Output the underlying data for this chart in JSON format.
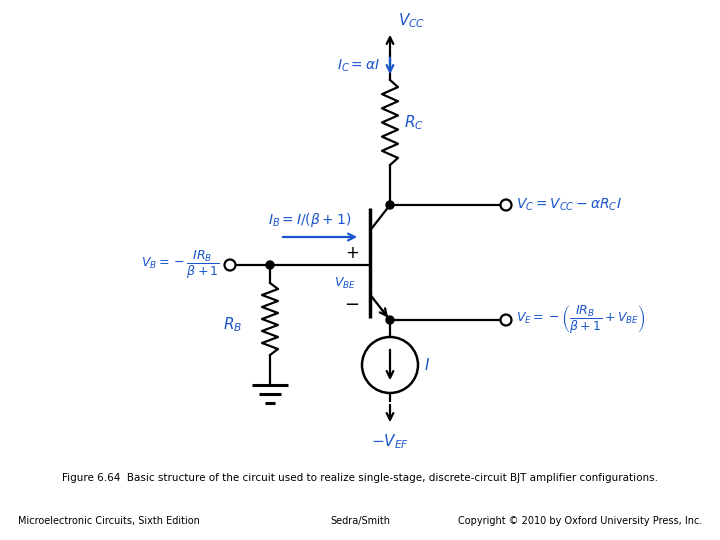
{
  "caption": "Figure 6.64  Basic structure of the circuit used to realize single-stage, discrete-circuit BJT amplifier configurations.",
  "footer_left": "Microelectronic Circuits, Sixth Edition",
  "footer_center": "Sedra/Smith",
  "footer_right": "Copyright © 2010 by Oxford University Press, Inc.",
  "blue_color": "#1a55cc",
  "bg_color": "#ffffff"
}
